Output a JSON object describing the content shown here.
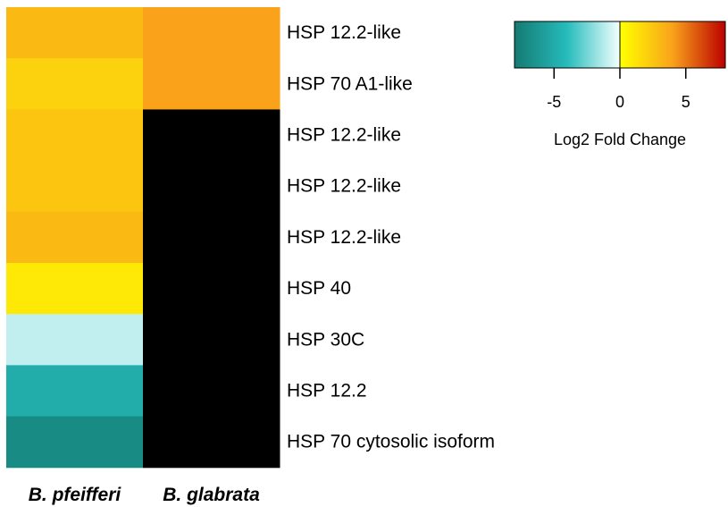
{
  "chart_data": {
    "type": "heatmap",
    "rows": [
      "HSP 12.2-like",
      "HSP 70 A1-like",
      "HSP 12.2-like",
      "HSP 12.2-like",
      "HSP 12.2-like",
      "HSP 40",
      "HSP 30C",
      "HSP 12.2",
      "HSP 70 cytosolic isoform"
    ],
    "columns": [
      "B. pfeifferi",
      "B. glabrata"
    ],
    "values": [
      [
        3.0,
        4.0
      ],
      [
        2.0,
        4.0
      ],
      [
        2.5,
        null
      ],
      [
        2.5,
        null
      ],
      [
        3.0,
        null
      ],
      [
        1.0,
        null
      ],
      [
        -1.0,
        null
      ],
      [
        -5.0,
        null
      ],
      [
        -7.0,
        null
      ]
    ],
    "missing_color": "#000000",
    "colorscale": {
      "min": -8,
      "max": 8,
      "stops": [
        [
          -8,
          "#157a72"
        ],
        [
          -4,
          "#26bcbc"
        ],
        [
          -0.05,
          "#f2ffff"
        ],
        [
          0.05,
          "#ffff00"
        ],
        [
          4,
          "#f9a21a"
        ],
        [
          8,
          "#bb0000"
        ]
      ]
    },
    "legend": {
      "title": "Log2 Fold Change",
      "ticks": [
        -5,
        0,
        5
      ],
      "tick_labels": [
        "-5",
        "0",
        "5"
      ],
      "placement": "top-right"
    }
  }
}
